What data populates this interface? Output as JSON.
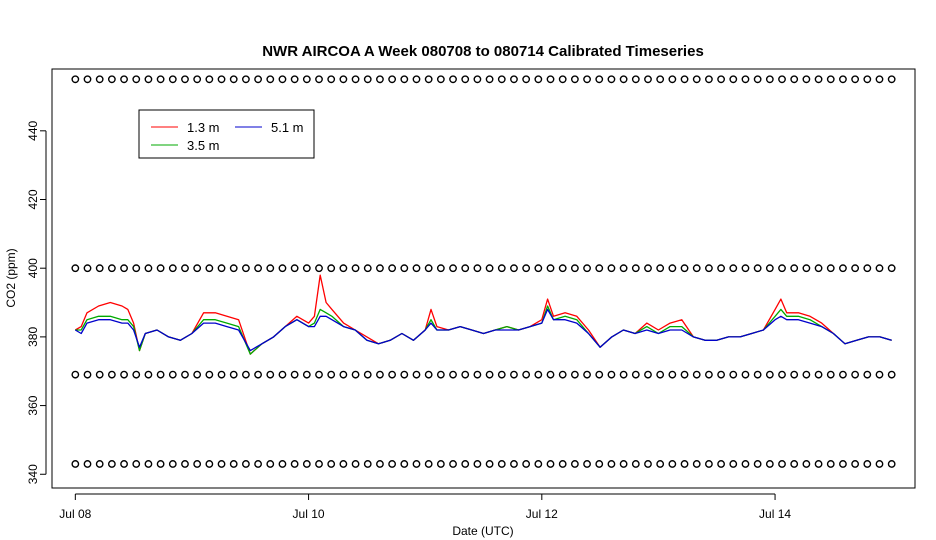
{
  "chart_data": {
    "type": "line",
    "title": "NWR AIRCOA A  Week 080708 to 080714  Calibrated Timeseries",
    "xlabel": "Date (UTC)",
    "ylabel": "CO2 (ppm)",
    "x_range_days": [
      -0.2,
      7.2
    ],
    "ylim": [
      336,
      458
    ],
    "x_ticks": [
      {
        "day": 0,
        "label": "Jul 08"
      },
      {
        "day": 2,
        "label": "Jul 10"
      },
      {
        "day": 4,
        "label": "Jul 12"
      },
      {
        "day": 6,
        "label": "Jul 14"
      }
    ],
    "y_ticks": [
      340,
      360,
      380,
      400,
      420,
      440
    ],
    "legend": {
      "placement": "top-left",
      "entries": [
        {
          "label": "1.3 m",
          "color": "#ff0000"
        },
        {
          "label": "5.1 m",
          "color": "#0000cc"
        },
        {
          "label": "3.5 m",
          "color": "#00aa00"
        }
      ]
    },
    "series": [
      {
        "name": "1.3 m",
        "color": "#ff0000",
        "x": [
          0.0,
          0.05,
          0.1,
          0.2,
          0.3,
          0.4,
          0.45,
          0.5,
          0.55,
          0.6,
          0.7,
          0.8,
          0.9,
          1.0,
          1.1,
          1.2,
          1.3,
          1.4,
          1.5,
          1.6,
          1.7,
          1.8,
          1.9,
          2.0,
          2.05,
          2.1,
          2.15,
          2.2,
          2.3,
          2.4,
          2.5,
          2.6,
          2.7,
          2.8,
          2.9,
          3.0,
          3.05,
          3.1,
          3.2,
          3.3,
          3.4,
          3.5,
          3.6,
          3.7,
          3.8,
          3.9,
          4.0,
          4.05,
          4.1,
          4.2,
          4.3,
          4.4,
          4.5,
          4.6,
          4.7,
          4.8,
          4.9,
          5.0,
          5.1,
          5.2,
          5.3,
          5.4,
          5.5,
          5.6,
          5.7,
          5.8,
          5.9,
          6.0,
          6.05,
          6.1,
          6.2,
          6.3,
          6.4,
          6.5,
          6.6,
          6.7,
          6.8,
          6.9,
          7.0
        ],
        "y": [
          382,
          383,
          387,
          389,
          390,
          389,
          388,
          384,
          376,
          381,
          382,
          380,
          379,
          381,
          387,
          387,
          386,
          385,
          375,
          378,
          380,
          383,
          386,
          384,
          386,
          398,
          390,
          388,
          384,
          382,
          380,
          378,
          379,
          381,
          379,
          382,
          388,
          383,
          382,
          383,
          382,
          381,
          382,
          383,
          382,
          383,
          385,
          391,
          386,
          387,
          386,
          382,
          377,
          380,
          382,
          381,
          384,
          382,
          384,
          385,
          380,
          379,
          379,
          380,
          380,
          381,
          382,
          388,
          391,
          387,
          387,
          386,
          384,
          381,
          378,
          379,
          380,
          380,
          379
        ]
      },
      {
        "name": "3.5 m",
        "color": "#00aa00",
        "x": [
          0.0,
          0.05,
          0.1,
          0.2,
          0.3,
          0.4,
          0.45,
          0.5,
          0.55,
          0.6,
          0.7,
          0.8,
          0.9,
          1.0,
          1.1,
          1.2,
          1.3,
          1.4,
          1.5,
          1.6,
          1.7,
          1.8,
          1.9,
          2.0,
          2.05,
          2.1,
          2.15,
          2.2,
          2.3,
          2.4,
          2.5,
          2.6,
          2.7,
          2.8,
          2.9,
          3.0,
          3.05,
          3.1,
          3.2,
          3.3,
          3.4,
          3.5,
          3.6,
          3.7,
          3.8,
          3.9,
          4.0,
          4.05,
          4.1,
          4.2,
          4.3,
          4.4,
          4.5,
          4.6,
          4.7,
          4.8,
          4.9,
          5.0,
          5.1,
          5.2,
          5.3,
          5.4,
          5.5,
          5.6,
          5.7,
          5.8,
          5.9,
          6.0,
          6.05,
          6.1,
          6.2,
          6.3,
          6.4,
          6.5,
          6.6,
          6.7,
          6.8,
          6.9,
          7.0
        ],
        "y": [
          382,
          382,
          385,
          386,
          386,
          385,
          385,
          383,
          376,
          381,
          382,
          380,
          379,
          381,
          385,
          385,
          384,
          383,
          375,
          378,
          380,
          383,
          385,
          383,
          384,
          388,
          387,
          386,
          383,
          382,
          379,
          378,
          379,
          381,
          379,
          382,
          385,
          382,
          382,
          383,
          382,
          381,
          382,
          383,
          382,
          383,
          384,
          389,
          385,
          386,
          385,
          381,
          377,
          380,
          382,
          381,
          383,
          381,
          383,
          383,
          380,
          379,
          379,
          380,
          380,
          381,
          382,
          386,
          388,
          386,
          386,
          385,
          383,
          381,
          378,
          379,
          380,
          380,
          379
        ]
      },
      {
        "name": "5.1 m",
        "color": "#0000cc",
        "x": [
          0.0,
          0.05,
          0.1,
          0.2,
          0.3,
          0.4,
          0.45,
          0.5,
          0.55,
          0.6,
          0.7,
          0.8,
          0.9,
          1.0,
          1.1,
          1.2,
          1.3,
          1.4,
          1.5,
          1.6,
          1.7,
          1.8,
          1.9,
          2.0,
          2.05,
          2.1,
          2.15,
          2.2,
          2.3,
          2.4,
          2.5,
          2.6,
          2.7,
          2.8,
          2.9,
          3.0,
          3.05,
          3.1,
          3.2,
          3.3,
          3.4,
          3.5,
          3.6,
          3.7,
          3.8,
          3.9,
          4.0,
          4.05,
          4.1,
          4.2,
          4.3,
          4.4,
          4.5,
          4.6,
          4.7,
          4.8,
          4.9,
          5.0,
          5.1,
          5.2,
          5.3,
          5.4,
          5.5,
          5.6,
          5.7,
          5.8,
          5.9,
          6.0,
          6.05,
          6.1,
          6.2,
          6.3,
          6.4,
          6.5,
          6.6,
          6.7,
          6.8,
          6.9,
          7.0
        ],
        "y": [
          382,
          381,
          384,
          385,
          385,
          384,
          384,
          382,
          377,
          381,
          382,
          380,
          379,
          381,
          384,
          384,
          383,
          382,
          376,
          378,
          380,
          383,
          385,
          383,
          383,
          386,
          386,
          385,
          383,
          382,
          379,
          378,
          379,
          381,
          379,
          382,
          384,
          382,
          382,
          383,
          382,
          381,
          382,
          382,
          382,
          383,
          384,
          388,
          385,
          385,
          384,
          381,
          377,
          380,
          382,
          381,
          382,
          381,
          382,
          382,
          380,
          379,
          379,
          380,
          380,
          381,
          382,
          385,
          386,
          385,
          385,
          384,
          383,
          381,
          378,
          379,
          380,
          380,
          379
        ]
      },
      {
        "name": "",
        "color": "#000000",
        "marker": "circle",
        "x_start": 0.0,
        "x_end": 7.0,
        "count": 68,
        "y_levels": [
          455,
          400,
          369,
          343
        ]
      }
    ]
  }
}
